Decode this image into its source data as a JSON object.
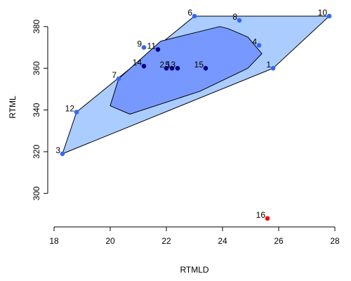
{
  "chart_data": {
    "type": "scatter",
    "title": "",
    "xlabel": "RTMLD",
    "ylabel": "RTML",
    "xlim": [
      18,
      28
    ],
    "ylim": [
      290,
      386
    ],
    "xticks": [
      18,
      20,
      22,
      24,
      26,
      28
    ],
    "yticks": [
      300,
      320,
      340,
      360,
      380
    ],
    "grid": false,
    "points": [
      {
        "label": "1",
        "x": 25.8,
        "y": 360,
        "group": "outer"
      },
      {
        "label": "2",
        "x": 22.0,
        "y": 360,
        "group": "inner"
      },
      {
        "label": "3",
        "x": 18.3,
        "y": 319,
        "group": "outer"
      },
      {
        "label": "4",
        "x": 25.3,
        "y": 371,
        "group": "outer"
      },
      {
        "label": "5",
        "x": 22.2,
        "y": 360,
        "group": "inner"
      },
      {
        "label": "6",
        "x": 23.0,
        "y": 385,
        "group": "outer"
      },
      {
        "label": "7",
        "x": 20.3,
        "y": 355,
        "group": "outer"
      },
      {
        "label": "8",
        "x": 24.6,
        "y": 383,
        "group": "outer"
      },
      {
        "label": "9",
        "x": 21.2,
        "y": 370,
        "group": "outer"
      },
      {
        "label": "10",
        "x": 27.8,
        "y": 385,
        "group": "outer"
      },
      {
        "label": "11",
        "x": 21.7,
        "y": 369,
        "group": "inner"
      },
      {
        "label": "12",
        "x": 18.8,
        "y": 339,
        "group": "outer"
      },
      {
        "label": "13",
        "x": 22.4,
        "y": 360,
        "group": "inner"
      },
      {
        "label": "14",
        "x": 21.2,
        "y": 361,
        "group": "inner"
      },
      {
        "label": "15",
        "x": 23.4,
        "y": 360,
        "group": "inner"
      },
      {
        "label": "16",
        "x": 25.6,
        "y": 288,
        "group": "outlier"
      }
    ],
    "outer_hull": [
      [
        18.3,
        319
      ],
      [
        25.8,
        360
      ],
      [
        27.8,
        385
      ],
      [
        23.0,
        385
      ],
      [
        18.8,
        339
      ]
    ],
    "inner_region": [
      [
        20.0,
        342
      ],
      [
        20.7,
        338
      ],
      [
        23.2,
        349
      ],
      [
        24.9,
        360
      ],
      [
        25.4,
        367
      ],
      [
        24.9,
        375
      ],
      [
        24.2,
        379
      ],
      [
        23.9,
        380
      ],
      [
        21.8,
        373
      ],
      [
        20.3,
        355
      ]
    ],
    "colors": {
      "outer_fill": "#aaccff",
      "inner_fill": "#7799ff",
      "outer_point": "#3366ff",
      "inner_point": "#000088",
      "outlier_point": "#ff0000"
    }
  }
}
